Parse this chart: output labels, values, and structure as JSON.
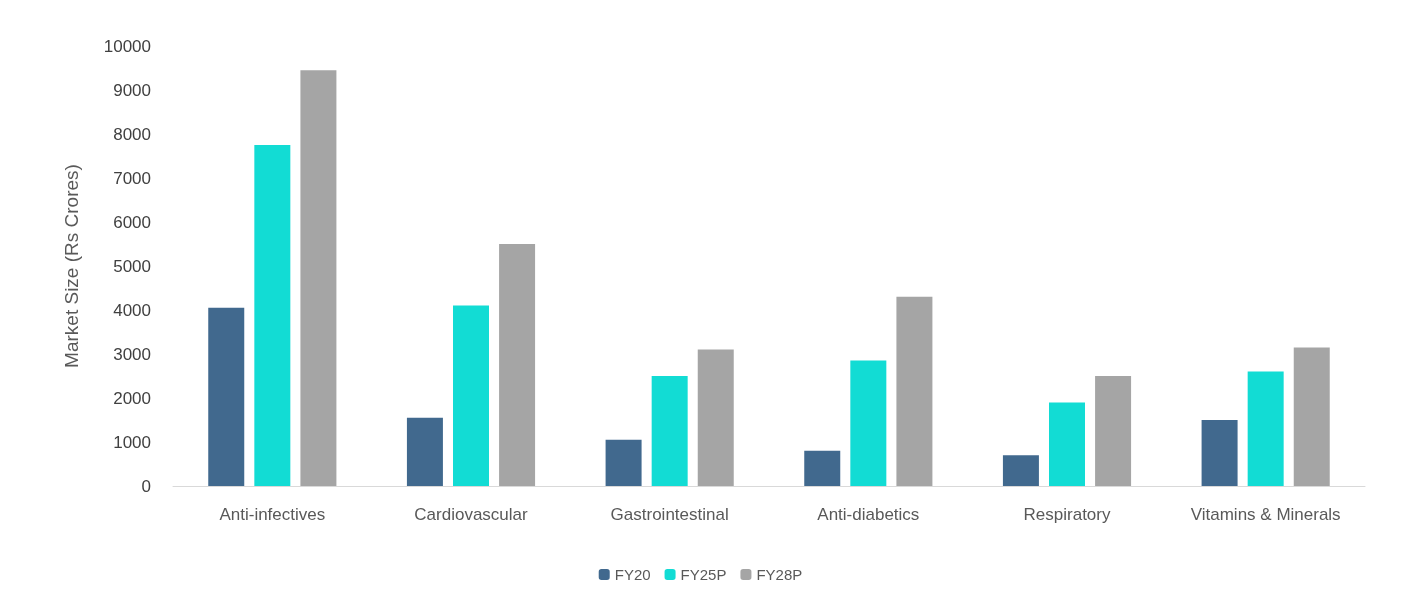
{
  "chart_data": {
    "type": "bar",
    "ylabel": "Market Size (Rs Crores)",
    "categories": [
      "Anti-infectives",
      "Cardiovascular",
      "Gastrointestinal",
      "Anti-diabetics",
      "Respiratory",
      "Vitamins & Minerals"
    ],
    "series": [
      {
        "name": "FY20",
        "color": "#41698e",
        "values": [
          4050,
          1550,
          1050,
          800,
          700,
          1500
        ]
      },
      {
        "name": "FY25P",
        "color": "#12dcd4",
        "values": [
          7750,
          4100,
          2500,
          2850,
          1900,
          2600
        ]
      },
      {
        "name": "FY28P",
        "color": "#a5a5a5",
        "values": [
          9450,
          5500,
          3100,
          4300,
          2500,
          3150
        ]
      }
    ],
    "ylim": [
      0,
      10000
    ],
    "yticks": [
      0,
      1000,
      2000,
      3000,
      4000,
      5000,
      6000,
      7000,
      8000,
      9000,
      10000
    ],
    "grid": false,
    "legend": "bottom"
  }
}
